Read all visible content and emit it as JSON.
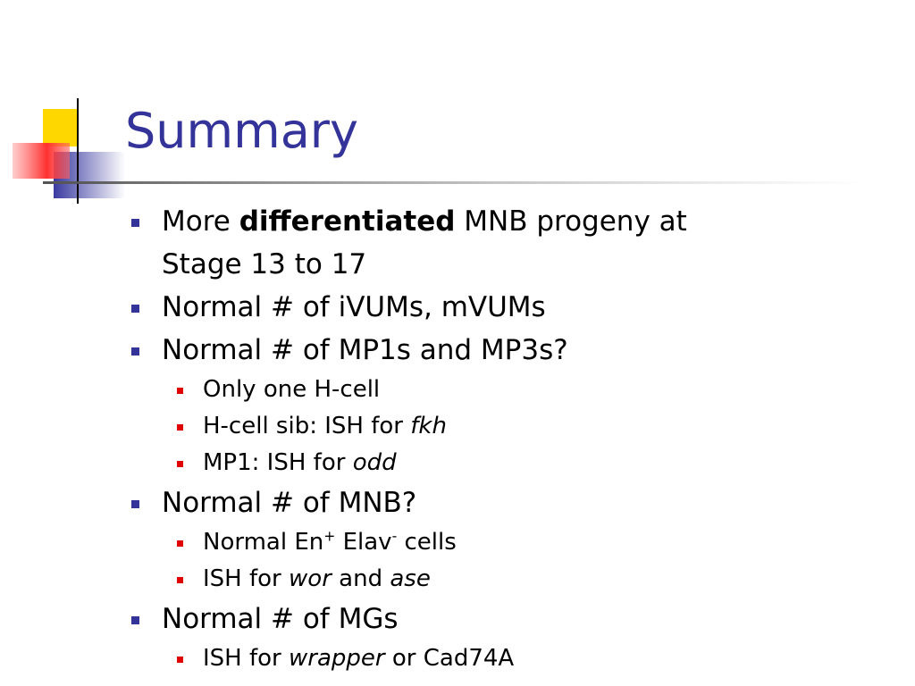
{
  "title": "Summary",
  "bullets": [
    {
      "runs": [
        {
          "text": "More "
        },
        {
          "text": "differentiated",
          "style": "bold"
        },
        {
          "text": " MNB progeny at Stage 13 to 17"
        }
      ],
      "sub": []
    },
    {
      "runs": [
        {
          "text": "Normal # of iVUMs, mVUMs"
        }
      ],
      "sub": []
    },
    {
      "runs": [
        {
          "text": "Normal # of MP1s and MP3s?"
        }
      ],
      "sub": [
        {
          "runs": [
            {
              "text": "Only one H-cell"
            }
          ]
        },
        {
          "runs": [
            {
              "text": "H-cell sib: ISH for "
            },
            {
              "text": "fkh",
              "style": "italic"
            }
          ]
        },
        {
          "runs": [
            {
              "text": "MP1: ISH for "
            },
            {
              "text": "odd",
              "style": "italic"
            }
          ]
        }
      ]
    },
    {
      "runs": [
        {
          "text": "Normal # of MNB?"
        }
      ],
      "sub": [
        {
          "runs": [
            {
              "text": "Normal En"
            },
            {
              "text": "+",
              "style": "sup"
            },
            {
              "text": " Elav"
            },
            {
              "text": "-",
              "style": "sup"
            },
            {
              "text": " cells"
            }
          ]
        },
        {
          "runs": [
            {
              "text": "ISH for "
            },
            {
              "text": "wor",
              "style": "italic"
            },
            {
              "text": " and "
            },
            {
              "text": "ase",
              "style": "italic"
            }
          ]
        }
      ]
    },
    {
      "runs": [
        {
          "text": "Normal # of MGs"
        }
      ],
      "sub": [
        {
          "runs": [
            {
              "text": "ISH for "
            },
            {
              "text": "wrapper",
              "style": "italic"
            },
            {
              "text": " or Cad74A"
            }
          ]
        }
      ]
    }
  ]
}
